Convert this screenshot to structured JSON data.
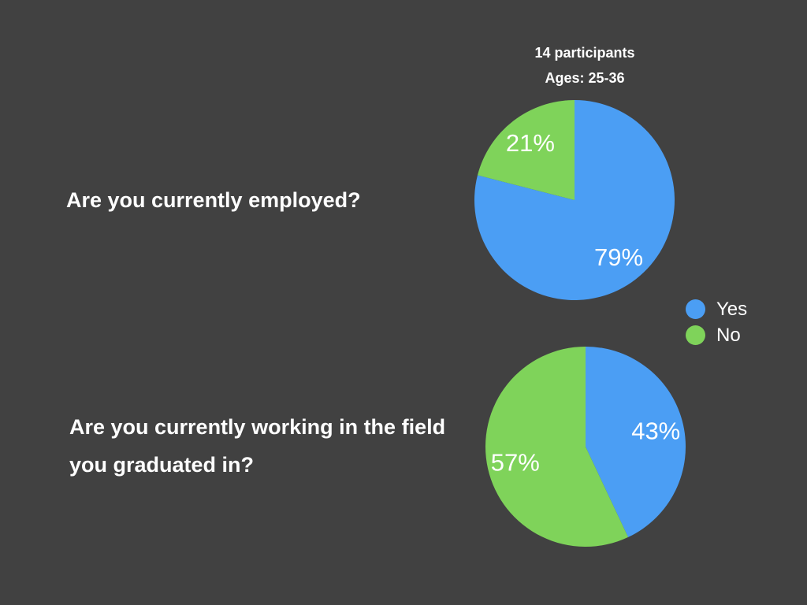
{
  "header": {
    "participants": "14 participants",
    "ages": "Ages: 25-36"
  },
  "questions": [
    "Are you currently employed?",
    "Are you currently working in the field you graduated in?"
  ],
  "legend": [
    {
      "label": "Yes",
      "color": "#4b9ef4"
    },
    {
      "label": "No",
      "color": "#7fd35a"
    }
  ],
  "chart_data": [
    {
      "type": "pie",
      "title": "Are you currently employed?",
      "slices": [
        {
          "label": "Yes",
          "value": 79,
          "text": "79%",
          "color": "#4b9ef4"
        },
        {
          "label": "No",
          "value": 21,
          "text": "21%",
          "color": "#7fd35a"
        }
      ],
      "start": "12 o'clock",
      "direction": "clockwise",
      "legend_position": "right"
    },
    {
      "type": "pie",
      "title": "Are you currently working in the field you graduated in?",
      "slices": [
        {
          "label": "Yes",
          "value": 43,
          "text": "43%",
          "color": "#4b9ef4"
        },
        {
          "label": "No",
          "value": 57,
          "text": "57%",
          "color": "#7fd35a"
        }
      ],
      "start": "12 o'clock",
      "direction": "clockwise",
      "legend_position": "right"
    }
  ]
}
